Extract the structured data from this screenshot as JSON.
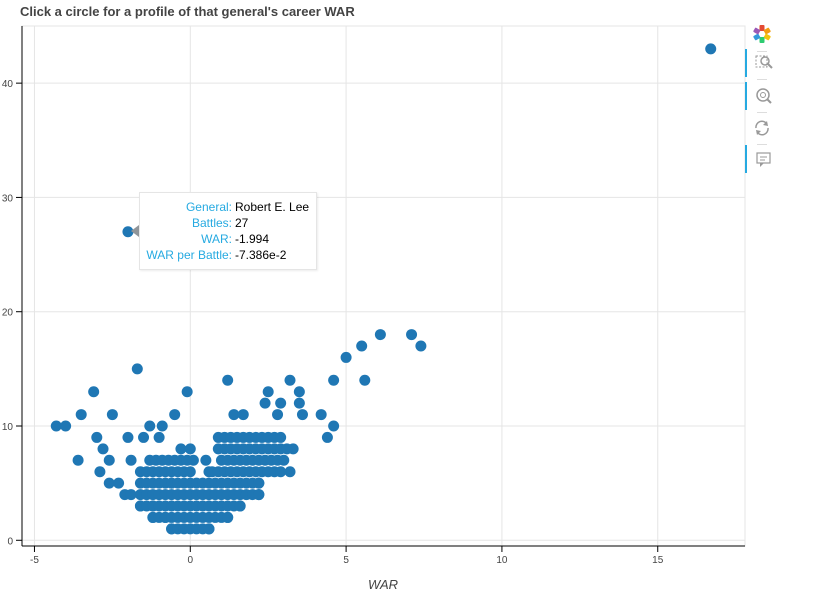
{
  "chart_data": {
    "type": "scatter",
    "title": "Click a circle for a profile of that general's career WAR",
    "xlabel": "WAR",
    "ylabel": "",
    "xlim": [
      -5.4,
      17.8
    ],
    "ylim": [
      -0.5,
      45
    ],
    "x_ticks": [
      -5,
      0,
      5,
      10,
      15
    ],
    "y_ticks": [
      0,
      10,
      20,
      30,
      40
    ],
    "grid": true,
    "marker_color": "#1f77b4",
    "series": [
      {
        "name": "generals",
        "points": [
          [
            16.7,
            43
          ],
          [
            -2.0,
            27
          ],
          [
            7.4,
            17
          ],
          [
            7.1,
            18
          ],
          [
            6.1,
            18
          ],
          [
            5.5,
            17
          ],
          [
            5.0,
            16
          ],
          [
            -1.7,
            15
          ],
          [
            4.6,
            14
          ],
          [
            5.6,
            14
          ],
          [
            1.2,
            14
          ],
          [
            3.2,
            14
          ],
          [
            -3.1,
            13
          ],
          [
            -0.1,
            13
          ],
          [
            2.5,
            13
          ],
          [
            3.5,
            13
          ],
          [
            2.4,
            12
          ],
          [
            2.9,
            12
          ],
          [
            3.5,
            12
          ],
          [
            -3.5,
            11
          ],
          [
            -2.5,
            11
          ],
          [
            -0.5,
            11
          ],
          [
            1.4,
            11
          ],
          [
            1.7,
            11
          ],
          [
            2.8,
            11
          ],
          [
            3.6,
            11
          ],
          [
            4.2,
            11
          ],
          [
            -4.3,
            10
          ],
          [
            -4.0,
            10
          ],
          [
            -1.3,
            10
          ],
          [
            -0.9,
            10
          ],
          [
            4.6,
            10
          ],
          [
            -3.0,
            9
          ],
          [
            -2.0,
            9
          ],
          [
            -1.5,
            9
          ],
          [
            -1.0,
            9
          ],
          [
            4.4,
            9
          ],
          [
            -2.8,
            8
          ],
          [
            -0.3,
            8
          ],
          [
            0.0,
            8
          ],
          [
            3.3,
            8
          ],
          [
            -3.6,
            7
          ],
          [
            -2.6,
            7
          ],
          [
            -1.9,
            7
          ],
          [
            0.5,
            7
          ],
          [
            -2.9,
            6
          ],
          [
            0.6,
            6
          ],
          [
            3.2,
            6
          ],
          [
            -2.6,
            5
          ],
          [
            -2.3,
            5
          ],
          [
            -0.6,
            5
          ],
          [
            2.2,
            5
          ],
          [
            -2.1,
            4
          ],
          [
            -1.9,
            4
          ],
          [
            2.2,
            4
          ],
          [
            -1.6,
            3
          ],
          [
            -1.2,
            3
          ],
          [
            1.6,
            3
          ],
          [
            -1.2,
            2
          ],
          [
            -0.8,
            2
          ],
          [
            1.2,
            2
          ],
          [
            -0.6,
            1
          ],
          [
            0.6,
            1
          ]
        ],
        "bands": [
          {
            "y": 9,
            "x_from": 0.9,
            "x_to": 3.0,
            "step": 0.2
          },
          {
            "y": 8,
            "x_from": 0.9,
            "x_to": 3.2,
            "step": 0.2
          },
          {
            "y": 7,
            "x_from": -1.3,
            "x_to": 0.1,
            "step": 0.2
          },
          {
            "y": 7,
            "x_from": 1.0,
            "x_to": 3.0,
            "step": 0.2
          },
          {
            "y": 6,
            "x_from": -1.6,
            "x_to": 0.1,
            "step": 0.2
          },
          {
            "y": 6,
            "x_from": 0.7,
            "x_to": 3.0,
            "step": 0.2
          },
          {
            "y": 5,
            "x_from": -1.6,
            "x_to": 2.2,
            "step": 0.2
          },
          {
            "y": 4,
            "x_from": -1.6,
            "x_to": 2.2,
            "step": 0.2
          },
          {
            "y": 3,
            "x_from": -1.6,
            "x_to": 1.6,
            "step": 0.2
          },
          {
            "y": 2,
            "x_from": -1.2,
            "x_to": 1.2,
            "step": 0.2
          },
          {
            "y": 1,
            "x_from": -0.6,
            "x_to": 0.6,
            "step": 0.2
          }
        ]
      }
    ]
  },
  "tooltip": {
    "general_label": "General:",
    "general_value": "Robert E. Lee",
    "battles_label": "Battles:",
    "battles_value": "27",
    "war_label": "WAR:",
    "war_value": "-1.994",
    "war_per_battle_label": "WAR per Battle:",
    "war_per_battle_value": "-7.386e-2"
  },
  "toolbar": {
    "tools": [
      "bokeh-logo-icon",
      "box-zoom-icon",
      "wheel-zoom-icon",
      "reset-icon",
      "hover-icon"
    ]
  }
}
